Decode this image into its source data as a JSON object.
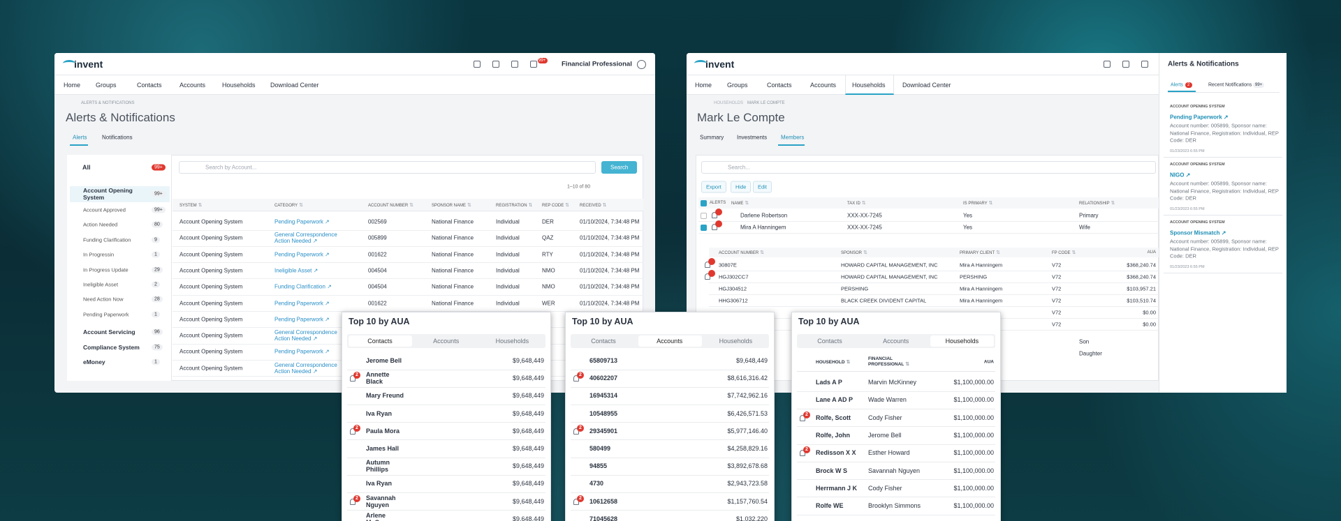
{
  "left": {
    "logo": "invent",
    "bell_badge": "99+",
    "user": "Financial Professional",
    "nav": [
      "Home",
      "Groups",
      "Contacts",
      "Accounts",
      "Households",
      "Download Center"
    ],
    "breadcrumb": "ALERTS & NOTIFICATIONS",
    "title": "Alerts & Notifications",
    "tabs": [
      "Alerts",
      "Notifications"
    ],
    "all": {
      "label": "All",
      "count": "99+"
    },
    "groups": [
      {
        "label": "Account Opening System",
        "count": "99+",
        "items": [
          {
            "label": "Account Approved",
            "count": "99+"
          },
          {
            "label": "Action Needed",
            "count": 80
          },
          {
            "label": "Funding Clarification",
            "count": 9
          },
          {
            "label": "In Progressin",
            "count": 1
          },
          {
            "label": "In Progress Update",
            "count": 29
          },
          {
            "label": "Ineligible Asset",
            "count": 2
          },
          {
            "label": "Need Action Now",
            "count": 28
          },
          {
            "label": "Pending Paperwork",
            "count": 1
          }
        ]
      },
      {
        "label": "Account Servicing",
        "count": 96
      },
      {
        "label": "Compliance System",
        "count": 75
      },
      {
        "label": "eMoney",
        "count": 1
      }
    ],
    "search_placeholder": "Search by Account...",
    "search_button": "Search",
    "pagination": "1–10 of 80",
    "columns": [
      "SYSTEM",
      "CATEGORY",
      "ACCOUNT NUMBER",
      "SPONSOR NAME",
      "REGISTRATION",
      "REP CODE",
      "RECEIVED"
    ],
    "rows": [
      [
        "Account Opening System",
        "Pending Paperwork",
        "002569",
        "National Finance",
        "Individual",
        "DER",
        "01/10/2024, 7:34:48 PM"
      ],
      [
        "Account Opening System",
        "General Correspondence Action Needed",
        "005899",
        "National Finance",
        "Individual",
        "QAZ",
        "01/10/2024, 7:34:48 PM"
      ],
      [
        "Account Opening System",
        "Pending Paperwork",
        "001622",
        "National Finance",
        "Individual",
        "RTY",
        "01/10/2024, 7:34:48 PM"
      ],
      [
        "Account Opening System",
        "Ineligible Asset",
        "004504",
        "National Finance",
        "Individual",
        "NMO",
        "01/10/2024, 7:34:48 PM"
      ],
      [
        "Account Opening System",
        "Funding Clarification",
        "004504",
        "National Finance",
        "Individual",
        "NMO",
        "01/10/2024, 7:34:48 PM"
      ],
      [
        "Account Opening System",
        "Pending Paperwork",
        "001622",
        "National Finance",
        "Individual",
        "WER",
        "01/10/2024, 7:34:48 PM"
      ],
      [
        "Account Opening System",
        "Pending Paperwork"
      ],
      [
        "Account Opening System",
        "General Correspondence Action Needed"
      ],
      [
        "Account Opening System",
        "Pending Paperwork"
      ],
      [
        "Account Opening System",
        "General Correspondence Action Needed"
      ]
    ]
  },
  "right": {
    "logo": "invent",
    "nav": [
      "Home",
      "Groups",
      "Contacts",
      "Accounts",
      "Households",
      "Download Center"
    ],
    "breadcrumb": [
      "HOUSEHOLDS",
      "MARK LE COMPTE"
    ],
    "title": "Mark Le Compte",
    "tabs": [
      "Summary",
      "Investments",
      "Members"
    ],
    "search_placeholder": "Search...",
    "buttons": [
      "Export",
      "Hide",
      "Edit"
    ],
    "columns": [
      "ALERTS",
      "NAME",
      "TAX ID",
      "IS PRIMARY",
      "RELATIONSHIP"
    ],
    "members": [
      {
        "name": "Darlene Robertson",
        "tax_id": "XXX-XX-7245",
        "is_primary": "Yes",
        "relationship": "Primary",
        "alert": true
      },
      {
        "name": "Mira A Hanningem",
        "tax_id": "XXX-XX-7245",
        "is_primary": "Yes",
        "relationship": "Wife",
        "alert": true
      }
    ],
    "account_columns": [
      "ACCOUNT NUMBER",
      "SPONSOR",
      "PRIMARY CLIENT",
      "FP CODE",
      "AUA"
    ],
    "accounts": [
      {
        "account": "30807E",
        "sponsor": "HOWARD CAPITAL MANAGEMENT, INC",
        "primary_client": "Mira A Hanningem",
        "fp_code": "V72",
        "aua": "$368,240.74",
        "alert": true
      },
      {
        "account": "HGJ302CC7",
        "sponsor": "HOWARD CAPITAL MANAGEMENT, INC",
        "primary_client": "PERSHING",
        "fp_code": "V72",
        "aua": "$368,240.74",
        "alert": true
      },
      {
        "account": "HGJ304512",
        "sponsor": "PERSHING",
        "primary_client": "Mira A Hanningem",
        "fp_code": "V72",
        "aua": "$103,957.21"
      },
      {
        "account": "HHG306712",
        "sponsor": "BLACK CREEK DIVIDENT CAPITAL",
        "primary_client": "Mira A Hanningem",
        "fp_code": "V72",
        "aua": "$103,510.74"
      },
      {
        "fp_code": "V72",
        "aua": "$0.00"
      },
      {
        "fp_code": "V72",
        "aua": "$0.00"
      }
    ],
    "other_relationships": [
      "Son",
      "Daughter"
    ],
    "notifications": {
      "title": "Alerts & Notifications",
      "tabs": [
        {
          "label": "Alerts",
          "badge": 2
        },
        {
          "label": "Recent Notifications",
          "badge": "99+"
        }
      ],
      "items": [
        {
          "category": "ACCOUNT OPENING SYSTEM",
          "title": "Pending Paperwork",
          "text": "Account number: 005899, Sponsor name: National Finance, Registration: Individual, REP Code: DER",
          "date": "01/23/2023 6:55 PM"
        },
        {
          "category": "ACCOUNT OPENING SYSTEM",
          "title": "NIGO",
          "text": "Account number: 005899, Sponsor name: National Finance, Registration: Individual, REP Code: DER",
          "date": "01/23/2023 6:55 PM"
        },
        {
          "category": "ACCOUNT OPENING SYSTEM",
          "title": "Sponsor Mismatch",
          "text": "Account number: 005899, Sponsor name: National Finance, Registration: Individual, REP Code: DER",
          "date": "01/23/2023 6:55 PM"
        }
      ]
    }
  },
  "cards": [
    {
      "title": "Top 10 by AUA",
      "tabs": [
        "Contacts",
        "Accounts",
        "Households"
      ],
      "active_tab": 0,
      "rows": [
        {
          "name": "Jerome Bell",
          "value": "$9,648,449"
        },
        {
          "name": "Annette Black",
          "value": "$9,648,449",
          "alert": 2
        },
        {
          "name": "Mary Freund",
          "value": "$9,648,449"
        },
        {
          "name": "Iva Ryan",
          "value": "$9,648,449"
        },
        {
          "name": "Paula Mora",
          "value": "$9,648,449",
          "alert": 2
        },
        {
          "name": "James Hall",
          "value": "$9,648,449"
        },
        {
          "name": "Autumn Phillips",
          "value": "$9,648,449"
        },
        {
          "name": "Iva Ryan",
          "value": "$9,648,449"
        },
        {
          "name": "Savannah Nguyen",
          "value": "$9,648,449",
          "alert": 2
        },
        {
          "name": "Arlene McCoy",
          "value": "$9,648,449"
        }
      ]
    },
    {
      "title": "Top 10 by AUA",
      "tabs": [
        "Contacts",
        "Accounts",
        "Households"
      ],
      "active_tab": 1,
      "rows": [
        {
          "name": "65809713",
          "value": "$9,648,449"
        },
        {
          "name": "40602207",
          "value": "$8,616,316.42",
          "alert": 2
        },
        {
          "name": "16945314",
          "value": "$7,742,962.16"
        },
        {
          "name": "10548955",
          "value": "$6,426,571.53"
        },
        {
          "name": "29345901",
          "value": "$5,977,146.40",
          "alert": 2
        },
        {
          "name": "580499",
          "value": "$4,258,829.16"
        },
        {
          "name": "94855",
          "value": "$3,892,678.68"
        },
        {
          "name": "4730",
          "value": "$2,943,723.58"
        },
        {
          "name": "10612658",
          "value": "$1,157,760.54",
          "alert": 2
        },
        {
          "name": "71045628",
          "value": "$1,032,220"
        }
      ]
    },
    {
      "title": "Top 10 by AUA",
      "tabs": [
        "Contacts",
        "Accounts",
        "Households"
      ],
      "active_tab": 2,
      "columns": [
        "HOUSEHOLD",
        "FINANCIAL PROFESSIONAL",
        "AUA"
      ],
      "rows": [
        {
          "name": "Lads A P",
          "fp": "Marvin McKinney",
          "value": "$1,100,000.00"
        },
        {
          "name": "Lane A AD P",
          "fp": "Wade Warren",
          "value": "$1,100,000.00"
        },
        {
          "name": "Rolfe, Scott",
          "fp": "Cody Fisher",
          "value": "$1,100,000.00",
          "alert": 2
        },
        {
          "name": "Rolfe, John",
          "fp": "Jerome Bell",
          "value": "$1,100,000.00"
        },
        {
          "name": "Redisson X X",
          "fp": "Esther Howard",
          "value": "$1,100,000.00",
          "alert": 2
        },
        {
          "name": "Brock W S",
          "fp": "Savannah Nguyen",
          "value": "$1,100,000.00"
        },
        {
          "name": "Herrmann J K",
          "fp": "Cody Fisher",
          "value": "$1,100,000.00"
        },
        {
          "name": "Rolfe WE",
          "fp": "Brooklyn Simmons",
          "value": "$1,100,000.00"
        }
      ]
    }
  ]
}
